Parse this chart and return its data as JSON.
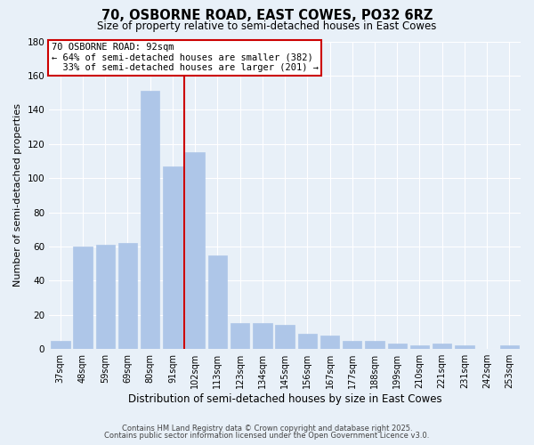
{
  "title": "70, OSBORNE ROAD, EAST COWES, PO32 6RZ",
  "subtitle": "Size of property relative to semi-detached houses in East Cowes",
  "xlabel": "Distribution of semi-detached houses by size in East Cowes",
  "ylabel": "Number of semi-detached properties",
  "categories": [
    "37sqm",
    "48sqm",
    "59sqm",
    "69sqm",
    "80sqm",
    "91sqm",
    "102sqm",
    "113sqm",
    "123sqm",
    "134sqm",
    "145sqm",
    "156sqm",
    "167sqm",
    "177sqm",
    "188sqm",
    "199sqm",
    "210sqm",
    "221sqm",
    "231sqm",
    "242sqm",
    "253sqm"
  ],
  "values": [
    5,
    60,
    61,
    62,
    151,
    107,
    115,
    55,
    15,
    15,
    14,
    9,
    8,
    5,
    5,
    3,
    2,
    3,
    2,
    0,
    2
  ],
  "bar_color": "#aec6e8",
  "bar_edge_color": "#aec6e8",
  "vline_x": 5.5,
  "vline_color": "#cc0000",
  "annotation_line1": "70 OSBORNE ROAD: 92sqm",
  "annotation_line2": "← 64% of semi-detached houses are smaller (382)",
  "annotation_line3": "  33% of semi-detached houses are larger (201) →",
  "annotation_box_color": "#ffffff",
  "annotation_box_edge": "#cc0000",
  "ylim": [
    0,
    180
  ],
  "yticks": [
    0,
    20,
    40,
    60,
    80,
    100,
    120,
    140,
    160,
    180
  ],
  "background_color": "#e8f0f8",
  "footer1": "Contains HM Land Registry data © Crown copyright and database right 2025.",
  "footer2": "Contains public sector information licensed under the Open Government Licence v3.0.",
  "title_fontsize": 10.5,
  "subtitle_fontsize": 8.5,
  "xlabel_fontsize": 8.5,
  "ylabel_fontsize": 8,
  "grid_color": "#ffffff",
  "tick_fontsize": 7,
  "annotation_fontsize": 7.5
}
